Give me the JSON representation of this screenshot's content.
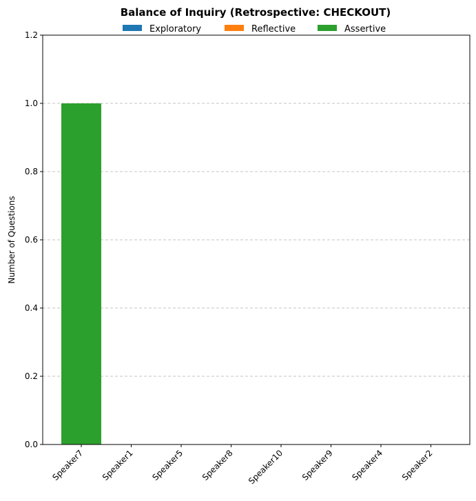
{
  "chart_data": {
    "type": "bar",
    "stacked": true,
    "title": "Balance of Inquiry (Retrospective: CHECKOUT)",
    "xlabel": "",
    "ylabel": "Number of Questions",
    "categories": [
      "Speaker7",
      "Speaker1",
      "Speaker5",
      "Speaker8",
      "Speaker10",
      "Speaker9",
      "Speaker4",
      "Speaker2"
    ],
    "series": [
      {
        "name": "Exploratory",
        "color": "#1f77b4",
        "values": [
          0,
          0,
          0,
          0,
          0,
          0,
          0,
          0
        ]
      },
      {
        "name": "Reflective",
        "color": "#ff7f0e",
        "values": [
          0,
          0,
          0,
          0,
          0,
          0,
          0,
          0
        ]
      },
      {
        "name": "Assertive",
        "color": "#2ca02c",
        "values": [
          1,
          0,
          0,
          0,
          0,
          0,
          0,
          0
        ]
      }
    ],
    "ylim": [
      0,
      1.2
    ],
    "yticks": [
      "0.0",
      "0.2",
      "0.4",
      "0.6",
      "0.8",
      "1.0",
      "1.2"
    ],
    "grid": "y-dashed",
    "legend_position": "top-center"
  }
}
